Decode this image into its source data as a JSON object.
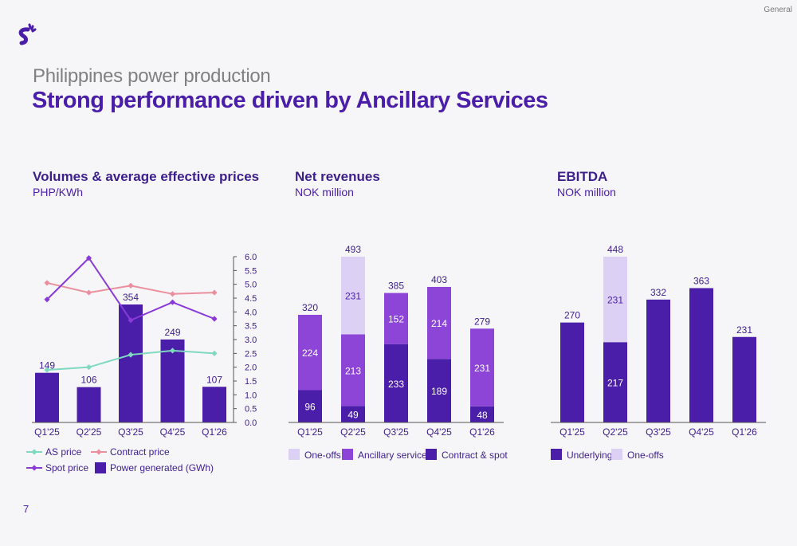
{
  "header": {
    "classification": "General",
    "pre_title": "Philippines power production",
    "title": "Strong performance driven by Ancillary Services",
    "page_number": "7"
  },
  "colors": {
    "dark_purple": "#4a1ea8",
    "mid_purple": "#8c45d6",
    "light_purple": "#ddd0f5",
    "spot_line": "#8a3ad9",
    "as_line": "#7ed9bf",
    "contract_line": "#eb8f9d"
  },
  "chart_data": [
    {
      "type": "bar",
      "title": "Volumes & average effective prices",
      "subtitle": "PHP/KWh",
      "categories": [
        "Q1'25",
        "Q2'25",
        "Q3'25",
        "Q4'25",
        "Q1'26"
      ],
      "bar_series": {
        "name": "Power generated (GWh)",
        "values": [
          149,
          106,
          354,
          249,
          107
        ]
      },
      "line_series": [
        {
          "name": "AS price",
          "values": [
            1.9,
            2.0,
            2.45,
            2.6,
            2.5
          ],
          "marker": "diamond"
        },
        {
          "name": "Contract price",
          "values": [
            5.05,
            4.7,
            4.95,
            4.65,
            4.7
          ],
          "marker": "diamond"
        },
        {
          "name": "Spot price",
          "values": [
            4.45,
            5.95,
            3.7,
            4.35,
            3.75
          ],
          "marker": "diamond"
        }
      ],
      "y2_axis": {
        "min": 0,
        "max": 6,
        "ticks": [
          "0.0",
          "0.5",
          "1.0",
          "1.5",
          "2.0",
          "2.5",
          "3.0",
          "3.5",
          "4.0",
          "4.5",
          "5.0",
          "5.5",
          "6.0"
        ]
      },
      "legend": [
        "AS price",
        "Contract price",
        "Spot price",
        "Power generated (GWh)"
      ],
      "legend_position": "bottom"
    },
    {
      "type": "stacked-bar",
      "title": "Net revenues",
      "subtitle": "NOK million",
      "categories": [
        "Q1'25",
        "Q2'25",
        "Q3'25",
        "Q4'25",
        "Q1'26"
      ],
      "series": [
        {
          "name": "Contract & spot",
          "values": [
            96,
            49,
            233,
            189,
            48
          ]
        },
        {
          "name": "Ancillary services",
          "values": [
            224,
            213,
            152,
            214,
            231
          ]
        },
        {
          "name": "One-offs",
          "values": [
            0,
            231,
            0,
            0,
            0
          ]
        }
      ],
      "totals": [
        320,
        493,
        385,
        403,
        279
      ],
      "legend": [
        "One-offs",
        "Ancillary services",
        "Contract & spot"
      ],
      "legend_position": "bottom"
    },
    {
      "type": "stacked-bar",
      "title": "EBITDA",
      "subtitle": "NOK million",
      "categories": [
        "Q1'25",
        "Q2'25",
        "Q3'25",
        "Q4'25",
        "Q1'26"
      ],
      "series": [
        {
          "name": "Underlying",
          "values": [
            270,
            217,
            332,
            363,
            231
          ]
        },
        {
          "name": "One-offs",
          "values": [
            0,
            231,
            0,
            0,
            0
          ]
        }
      ],
      "totals": [
        270,
        448,
        332,
        363,
        231
      ],
      "legend": [
        "Underlying",
        "One-offs"
      ],
      "legend_position": "bottom"
    }
  ]
}
